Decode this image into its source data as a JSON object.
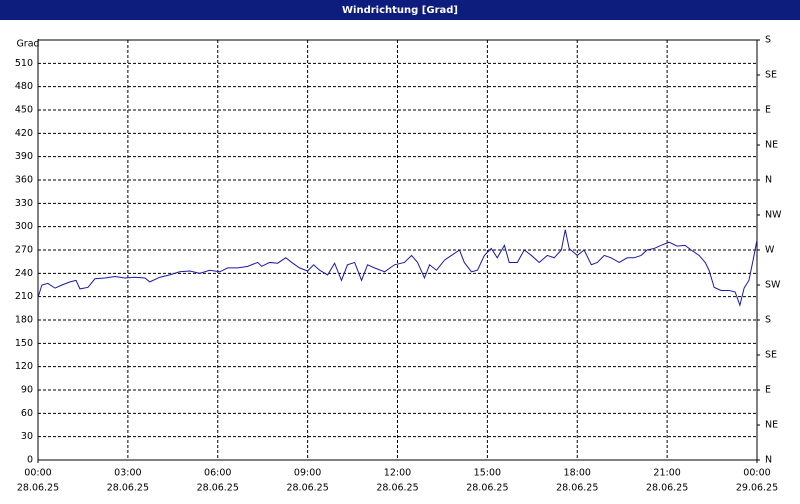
{
  "chart_data": {
    "type": "line",
    "title": "Windrichtung [Grad]",
    "y_label": "Grad",
    "x": [
      0,
      0.13,
      0.33,
      0.57,
      0.8,
      1.07,
      1.27,
      1.4,
      1.67,
      1.9,
      2.23,
      2.57,
      2.9,
      3.23,
      3.57,
      3.73,
      4.07,
      4.4,
      4.73,
      5.07,
      5.4,
      5.73,
      6.07,
      6.33,
      6.67,
      7,
      7.33,
      7.47,
      7.73,
      8,
      8.27,
      8.47,
      8.73,
      9,
      9.2,
      9.4,
      9.67,
      9.9,
      10.13,
      10.33,
      10.57,
      10.8,
      11,
      11.23,
      11.57,
      11.9,
      12.23,
      12.47,
      12.67,
      12.9,
      13.07,
      13.3,
      13.57,
      13.8,
      14.07,
      14.23,
      14.47,
      14.67,
      14.9,
      15.13,
      15.33,
      15.57,
      15.73,
      16,
      16.23,
      16.47,
      16.73,
      17,
      17.23,
      17.47,
      17.6,
      17.73,
      18,
      18.23,
      18.47,
      18.67,
      18.9,
      19.13,
      19.4,
      19.67,
      19.9,
      20.13,
      20.33,
      20.57,
      20.8,
      21.07,
      21.33,
      21.6,
      21.8,
      22.07,
      22.27,
      22.4,
      22.57,
      22.8,
      23.07,
      23.27,
      23.43,
      23.57,
      23.73,
      23.87,
      24
    ],
    "series": [
      {
        "name": "Windrichtung",
        "color": "#1a1aa6",
        "values": [
          209,
          225,
          227,
          221,
          225,
          229,
          231,
          220,
          222,
          233,
          234,
          236,
          234,
          235,
          234,
          229,
          235,
          238,
          242,
          243,
          240,
          244,
          242,
          247,
          247,
          249,
          254,
          249,
          254,
          253,
          260,
          254,
          247,
          243,
          251,
          244,
          238,
          253,
          231,
          251,
          254,
          231,
          251,
          247,
          242,
          251,
          254,
          263,
          254,
          234,
          251,
          244,
          257,
          263,
          270,
          254,
          242,
          244,
          263,
          272,
          260,
          276,
          254,
          254,
          270,
          263,
          254,
          263,
          260,
          270,
          296,
          272,
          263,
          270,
          251,
          254,
          263,
          260,
          254,
          260,
          260,
          263,
          270,
          272,
          276,
          280,
          275,
          276,
          270,
          263,
          254,
          244,
          222,
          218,
          218,
          216,
          199,
          221,
          231,
          257,
          283
        ]
      }
    ],
    "xlim": [
      0,
      24
    ],
    "xticks": [
      {
        "value": 0,
        "label": [
          "00:00",
          "28.06.25"
        ]
      },
      {
        "value": 3,
        "label": [
          "03:00",
          "28.06.25"
        ]
      },
      {
        "value": 6,
        "label": [
          "06:00",
          "28.06.25"
        ]
      },
      {
        "value": 9,
        "label": [
          "09:00",
          "28.06.25"
        ]
      },
      {
        "value": 12,
        "label": [
          "12:00",
          "28.06.25"
        ]
      },
      {
        "value": 15,
        "label": [
          "15:00",
          "28.06.25"
        ]
      },
      {
        "value": 18,
        "label": [
          "18:00",
          "28.06.25"
        ]
      },
      {
        "value": 21,
        "label": [
          "21:00",
          "28.06.25"
        ]
      },
      {
        "value": 24,
        "label": [
          "00:00",
          "29.06.25"
        ]
      }
    ],
    "ylim": [
      0,
      540
    ],
    "yticks": [
      0,
      30,
      60,
      90,
      120,
      150,
      180,
      210,
      240,
      270,
      300,
      330,
      360,
      390,
      420,
      450,
      480,
      510
    ],
    "y2lim": [
      0,
      540
    ],
    "y2ticks": [
      {
        "value": 0,
        "label": "N"
      },
      {
        "value": 45,
        "label": "NE"
      },
      {
        "value": 90,
        "label": "E"
      },
      {
        "value": 135,
        "label": "SE"
      },
      {
        "value": 180,
        "label": "S"
      },
      {
        "value": 225,
        "label": "SW"
      },
      {
        "value": 270,
        "label": "W"
      },
      {
        "value": 315,
        "label": "NW"
      },
      {
        "value": 360,
        "label": "N"
      },
      {
        "value": 405,
        "label": "NE"
      },
      {
        "value": 450,
        "label": "E"
      },
      {
        "value": 495,
        "label": "SE"
      },
      {
        "value": 540,
        "label": "S"
      }
    ],
    "grid": true
  }
}
